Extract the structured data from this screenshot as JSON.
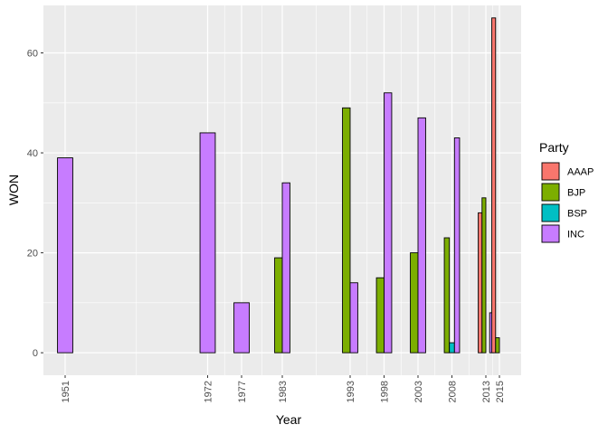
{
  "chart_data": {
    "type": "bar",
    "xlabel": "Year",
    "ylabel": "WON",
    "ylim": [
      -4.5,
      69.5
    ],
    "yticks": [
      0,
      20,
      40,
      60
    ],
    "xticks": [
      1951,
      1972,
      1977,
      1983,
      1993,
      1998,
      2003,
      2008,
      2013,
      2015
    ],
    "grid": true,
    "legend": {
      "title": "Party",
      "position": "right",
      "entries": [
        "AAAP",
        "BJP",
        "BSP",
        "INC"
      ]
    },
    "colors": {
      "AAAP": "#F8766D",
      "BJP": "#7CAE00",
      "BSP": "#00BFC4",
      "INC": "#C77CFF"
    },
    "series": [
      {
        "name": "INC",
        "points": [
          {
            "year": 1951,
            "value": 39
          },
          {
            "year": 1972,
            "value": 44
          },
          {
            "year": 1977,
            "value": 10
          },
          {
            "year": 1983,
            "value": 34
          },
          {
            "year": 1993,
            "value": 14
          },
          {
            "year": 1998,
            "value": 52
          },
          {
            "year": 2003,
            "value": 47
          },
          {
            "year": 2008,
            "value": 43
          },
          {
            "year": 2013,
            "value": 8
          },
          {
            "year": 2015,
            "value": 0
          }
        ]
      },
      {
        "name": "BJP",
        "points": [
          {
            "year": 1983,
            "value": 19
          },
          {
            "year": 1993,
            "value": 49
          },
          {
            "year": 1998,
            "value": 15
          },
          {
            "year": 2003,
            "value": 20
          },
          {
            "year": 2008,
            "value": 23
          },
          {
            "year": 2013,
            "value": 31
          },
          {
            "year": 2015,
            "value": 3
          }
        ]
      },
      {
        "name": "BSP",
        "points": [
          {
            "year": 2008,
            "value": 2
          },
          {
            "year": 2013,
            "value": 0
          },
          {
            "year": 2015,
            "value": 0
          }
        ]
      },
      {
        "name": "AAAP",
        "points": [
          {
            "year": 2013,
            "value": 28
          },
          {
            "year": 2015,
            "value": 67
          }
        ]
      }
    ]
  }
}
